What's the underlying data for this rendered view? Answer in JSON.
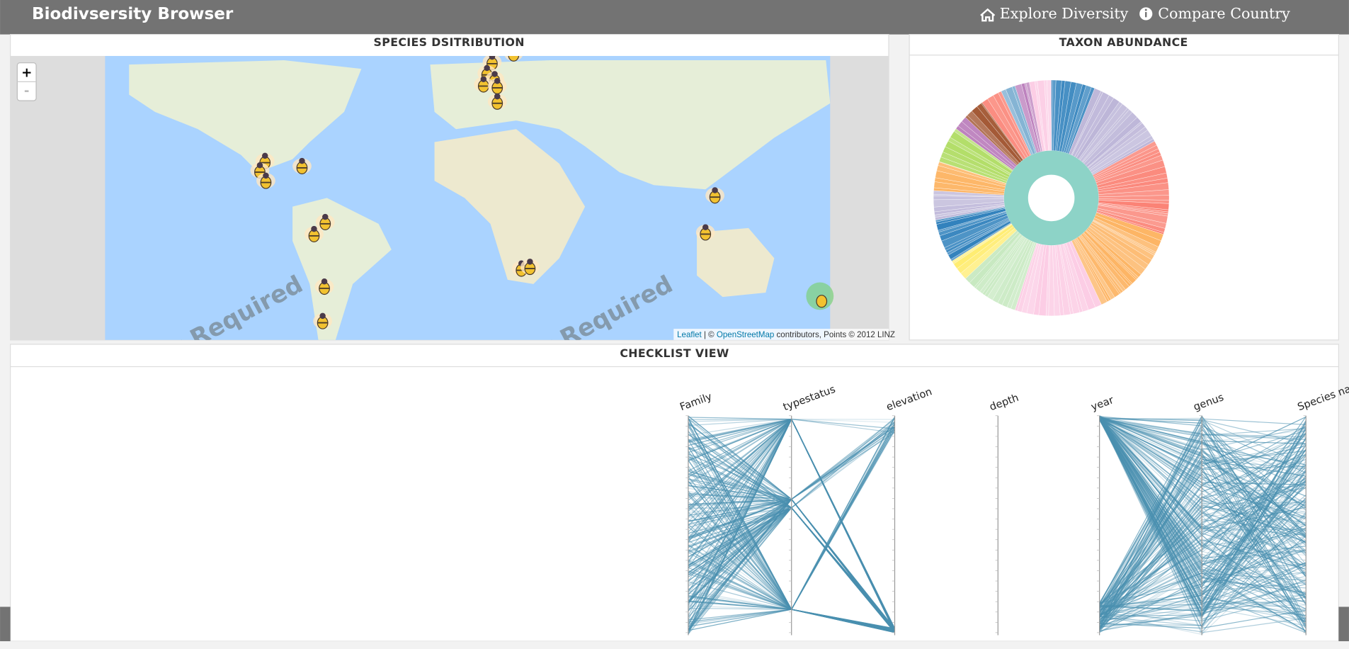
{
  "header": {
    "title": "Biodivsersity Browser",
    "nav": [
      "Explore Diversity",
      "Compare Country"
    ]
  },
  "map_panel": {
    "title": "SPECIES DSITRIBUTION",
    "zoom_in": "+",
    "zoom_out": "-",
    "watermark": "Key Required",
    "attribution": {
      "leaflet": "Leaflet",
      "separator": "| ©",
      "osm": "OpenStreetMap",
      "rest": "contributors, Points © 2012 LINZ"
    }
  },
  "taxon_panel": {
    "title": "TAXON ABUNDANCE"
  },
  "checklist_panel": {
    "title": "CHECKLIST VIEW",
    "axes": [
      "Family",
      "typestatus",
      "elevation",
      "depth",
      "year",
      "genus",
      "Species name"
    ]
  }
}
